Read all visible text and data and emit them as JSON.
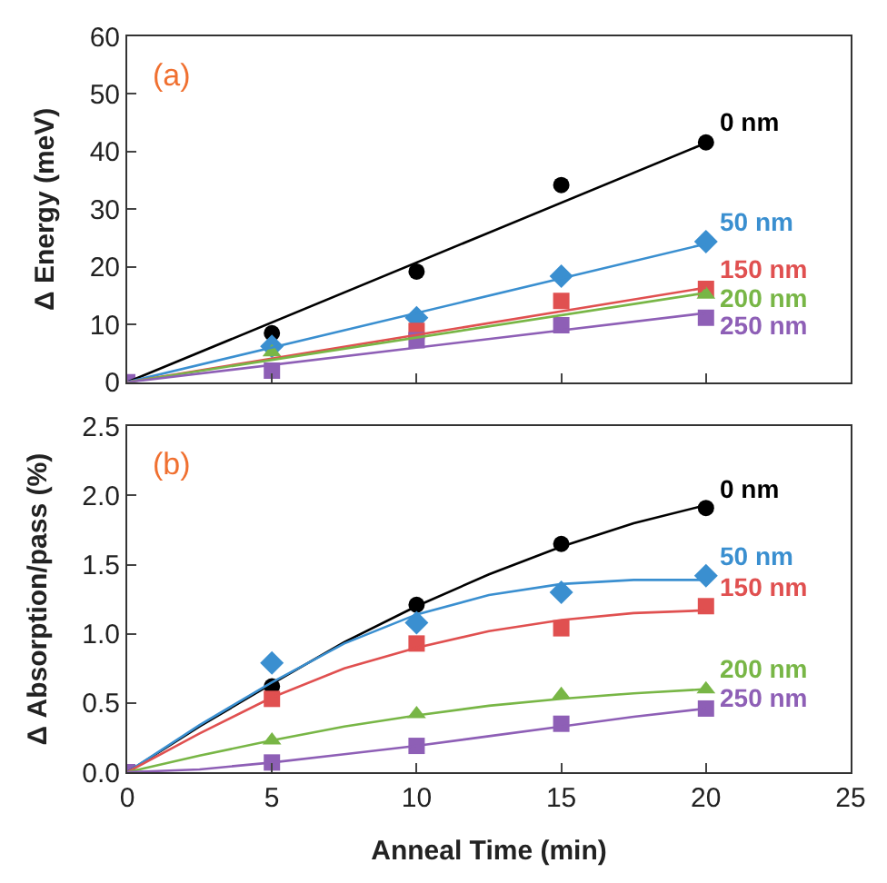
{
  "chart_data": [
    {
      "type": "scatter",
      "ylabel": "Δ Energy (meV)",
      "annotations": [
        "(a)"
      ],
      "x": [
        0,
        5,
        10,
        15,
        20
      ],
      "xlim": [
        0,
        25
      ],
      "xticks": [
        0,
        5,
        10,
        15,
        20,
        25
      ],
      "ylim": [
        0,
        60
      ],
      "yticks": [
        0,
        10,
        20,
        30,
        40,
        50,
        60
      ],
      "tick_labels": "y",
      "legend": false,
      "series": [
        {
          "name": "0 nm",
          "color": "#000000",
          "marker": "circle",
          "values": [
            null,
            8.5,
            19.2,
            34.2,
            41.6
          ]
        },
        {
          "name": "50 nm",
          "color": "#3a8fd0",
          "marker": "diamond",
          "values": [
            null,
            6.2,
            11.2,
            18.4,
            24.4
          ]
        },
        {
          "name": "150 nm",
          "color": "#e05050",
          "marker": "square",
          "values": [
            null,
            null,
            8.9,
            14.1,
            16.2
          ]
        },
        {
          "name": "200 nm",
          "color": "#78b646",
          "marker": "triangle",
          "values": [
            null,
            5.2,
            null,
            null,
            15.2
          ]
        },
        {
          "name": "250 nm",
          "color": "#8e5fb6",
          "marker": "square",
          "values": [
            0,
            2.0,
            7.3,
            9.9,
            11.2
          ]
        },
        {
          "type": "line",
          "color": "#000000",
          "marker": "none",
          "x": [
            0,
            20
          ],
          "values": [
            0,
            41.5
          ]
        },
        {
          "type": "line",
          "color": "#3a8fd0",
          "marker": "none",
          "x": [
            0,
            20
          ],
          "values": [
            0,
            24
          ]
        },
        {
          "type": "line",
          "color": "#e05050",
          "marker": "none",
          "x": [
            0,
            20
          ],
          "values": [
            0,
            16.4
          ]
        },
        {
          "type": "line",
          "color": "#78b646",
          "marker": "none",
          "x": [
            0,
            20
          ],
          "values": [
            0,
            15.5
          ]
        },
        {
          "type": "line",
          "color": "#8e5fb6",
          "marker": "none",
          "x": [
            0,
            20
          ],
          "values": [
            0,
            12
          ]
        }
      ]
    },
    {
      "type": "scatter",
      "xlabel": "Anneal Time (min)",
      "ylabel": "Δ Absorption/pass (%)",
      "annotations": [
        "(b)"
      ],
      "x": [
        0,
        5,
        10,
        15,
        20
      ],
      "xlim": [
        0,
        25
      ],
      "xticks": [
        0,
        5,
        10,
        15,
        20,
        25
      ],
      "ylim": [
        0,
        2.5
      ],
      "yticks": [
        {
          "value": 0,
          "label": "0.0"
        },
        {
          "value": 0.5,
          "label": "0.5"
        },
        {
          "value": 1,
          "label": "1.0"
        },
        {
          "value": 1.5,
          "label": "1.5"
        },
        {
          "value": 2,
          "label": "2.0"
        },
        {
          "value": 2.5,
          "label": "2.5"
        }
      ],
      "legend": false,
      "series": [
        {
          "name": "0 nm",
          "color": "#000000",
          "marker": "circle",
          "values": [
            null,
            0.62,
            1.21,
            1.65,
            1.91
          ]
        },
        {
          "name": "50 nm",
          "color": "#3a8fd0",
          "marker": "diamond",
          "values": [
            null,
            0.79,
            1.08,
            1.3,
            1.42
          ]
        },
        {
          "name": "150 nm",
          "color": "#e05050",
          "marker": "square",
          "values": [
            null,
            0.53,
            0.93,
            1.04,
            1.2
          ]
        },
        {
          "name": "200 nm",
          "color": "#78b646",
          "marker": "triangle",
          "values": [
            null,
            0.23,
            0.42,
            0.56,
            0.6
          ]
        },
        {
          "name": "250 nm",
          "color": "#8e5fb6",
          "marker": "square",
          "values": [
            0,
            0.07,
            0.19,
            0.35,
            0.46
          ]
        },
        {
          "type": "line",
          "color": "#000000",
          "marker": "none",
          "x": [
            0,
            2.5,
            5,
            7.5,
            10,
            12.5,
            15,
            17.5,
            20
          ],
          "values": [
            0,
            0.33,
            0.64,
            0.94,
            1.2,
            1.43,
            1.63,
            1.8,
            1.93
          ]
        },
        {
          "type": "line",
          "color": "#3a8fd0",
          "marker": "none",
          "x": [
            0,
            2.5,
            5,
            7.5,
            10,
            12.5,
            15,
            17.5,
            20
          ],
          "values": [
            0,
            0.34,
            0.65,
            0.93,
            1.14,
            1.28,
            1.36,
            1.39,
            1.39
          ]
        },
        {
          "type": "line",
          "color": "#e05050",
          "marker": "none",
          "x": [
            0,
            2.5,
            5,
            7.5,
            10,
            12.5,
            15,
            17.5,
            20
          ],
          "values": [
            0,
            0.28,
            0.54,
            0.75,
            0.9,
            1.02,
            1.1,
            1.15,
            1.17
          ]
        },
        {
          "type": "line",
          "color": "#78b646",
          "marker": "none",
          "x": [
            0,
            2.5,
            5,
            7.5,
            10,
            12.5,
            15,
            17.5,
            20
          ],
          "values": [
            0,
            0.12,
            0.23,
            0.33,
            0.41,
            0.48,
            0.53,
            0.57,
            0.6
          ]
        },
        {
          "type": "line",
          "color": "#8e5fb6",
          "marker": "none",
          "x": [
            0,
            2.5,
            5,
            7.5,
            10,
            12.5,
            15,
            17.5,
            20
          ],
          "values": [
            0,
            0.02,
            0.07,
            0.13,
            0.19,
            0.26,
            0.33,
            0.4,
            0.46
          ]
        }
      ]
    }
  ]
}
